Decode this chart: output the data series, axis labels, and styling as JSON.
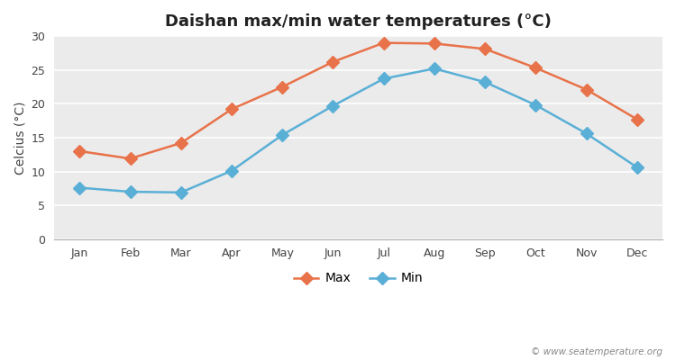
{
  "months": [
    "Jan",
    "Feb",
    "Mar",
    "Apr",
    "May",
    "Jun",
    "Jul",
    "Aug",
    "Sep",
    "Oct",
    "Nov",
    "Dec"
  ],
  "max_temps": [
    13.0,
    11.9,
    14.2,
    19.2,
    22.5,
    26.2,
    29.0,
    28.9,
    28.1,
    25.3,
    22.1,
    17.7
  ],
  "min_temps": [
    7.6,
    7.0,
    6.9,
    10.1,
    15.4,
    19.7,
    23.7,
    25.2,
    23.2,
    19.8,
    15.6,
    10.6
  ],
  "max_color": "#e8724a",
  "min_color": "#5aafd6",
  "bg_color": "#ebebeb",
  "fig_bg": "#ffffff",
  "title": "Daishan max/min water temperatures (°C)",
  "ylabel": "Celcius (°C)",
  "ylim": [
    0,
    30
  ],
  "yticks": [
    0,
    5,
    10,
    15,
    20,
    25,
    30
  ],
  "watermark": "© www.seatemperature.org",
  "legend_max": "Max",
  "legend_min": "Min",
  "title_fontsize": 13,
  "axis_fontsize": 10,
  "tick_fontsize": 9,
  "marker_size": 7,
  "line_width": 1.8
}
